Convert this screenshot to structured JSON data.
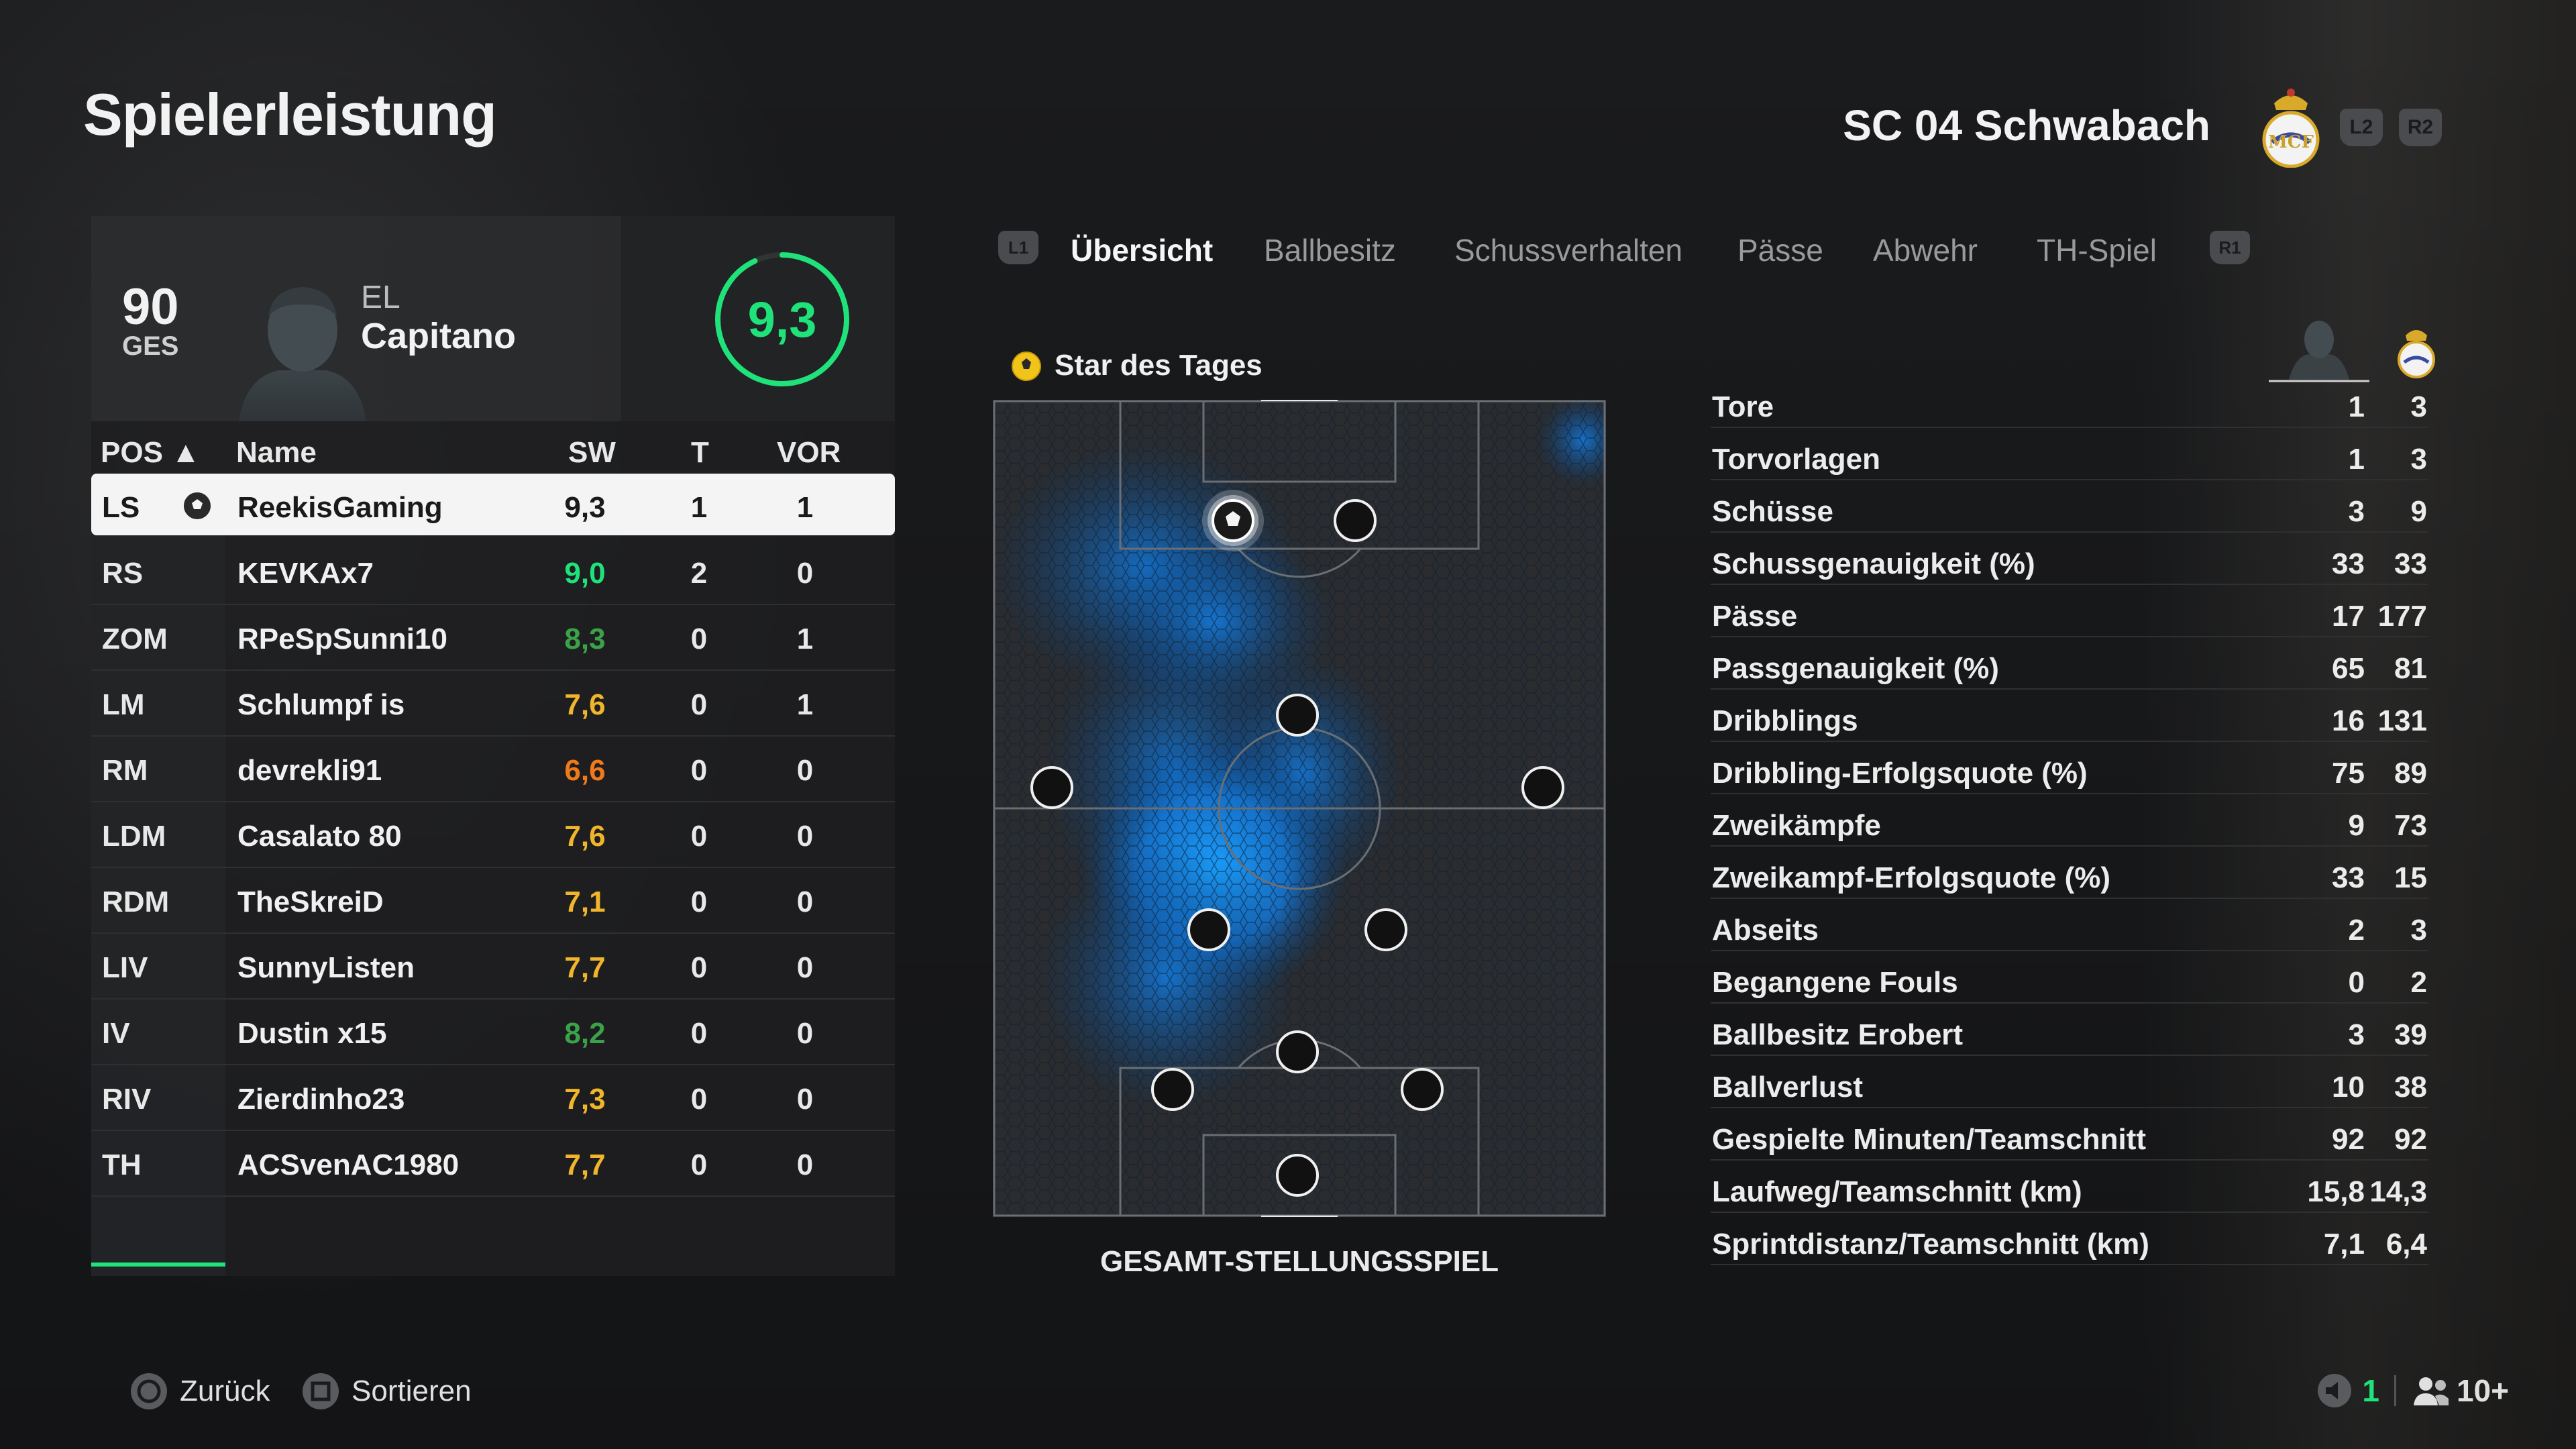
{
  "header": {
    "title": "Spielerleistung",
    "club_name": "SC 04 Schwabach",
    "button_l2": "L2",
    "button_r2": "R2"
  },
  "player_card": {
    "overall": "90",
    "overall_label": "GES",
    "first_name": "EL",
    "last_name": "Capitano",
    "rating": "9,3",
    "rating_color": "#1fe37a"
  },
  "table": {
    "headers": {
      "pos": "POS ▲",
      "name": "Name",
      "sw": "SW",
      "t": "T",
      "vor": "VOR"
    },
    "rows": [
      {
        "pos": "LS",
        "name": "ReekisGaming",
        "sw": "9,3",
        "t": "1",
        "vor": "1",
        "sw_color": "#1a1a1a"
      },
      {
        "pos": "RS",
        "name": "KEVKAx7",
        "sw": "9,0",
        "t": "2",
        "vor": "0",
        "sw_color": "#1fe37a"
      },
      {
        "pos": "ZOM",
        "name": "RPeSpSunni10",
        "sw": "8,3",
        "t": "0",
        "vor": "1",
        "sw_color": "#3aa34a"
      },
      {
        "pos": "LM",
        "name": "Schlumpf is",
        "sw": "7,6",
        "t": "0",
        "vor": "1",
        "sw_color": "#f0b52a"
      },
      {
        "pos": "RM",
        "name": "devrekli91",
        "sw": "6,6",
        "t": "0",
        "vor": "0",
        "sw_color": "#f07a1a"
      },
      {
        "pos": "LDM",
        "name": "Casalato 80",
        "sw": "7,6",
        "t": "0",
        "vor": "0",
        "sw_color": "#f0b52a"
      },
      {
        "pos": "RDM",
        "name": "TheSkreiD",
        "sw": "7,1",
        "t": "0",
        "vor": "0",
        "sw_color": "#f0b52a"
      },
      {
        "pos": "LIV",
        "name": "SunnyListen",
        "sw": "7,7",
        "t": "0",
        "vor": "0",
        "sw_color": "#f0b52a"
      },
      {
        "pos": "IV",
        "name": "Dustin x15",
        "sw": "8,2",
        "t": "0",
        "vor": "0",
        "sw_color": "#3aa34a"
      },
      {
        "pos": "RIV",
        "name": "Zierdinho23",
        "sw": "7,3",
        "t": "0",
        "vor": "0",
        "sw_color": "#f0b52a"
      },
      {
        "pos": "TH",
        "name": "ACSvenAC1980",
        "sw": "7,7",
        "t": "0",
        "vor": "0",
        "sw_color": "#f0b52a"
      }
    ]
  },
  "tabs": {
    "l1": "L1",
    "r1": "R1",
    "items": [
      "Übersicht",
      "Ballbesitz",
      "Schussverhalten",
      "Pässe",
      "Abwehr",
      "TH-Spiel"
    ]
  },
  "pitch": {
    "star_label": "Star des Tages",
    "caption": "GESAMT-STELLUNGSSPIEL"
  },
  "stats": [
    {
      "label": "Tore",
      "player": "1",
      "team": "3"
    },
    {
      "label": "Torvorlagen",
      "player": "1",
      "team": "3"
    },
    {
      "label": "Schüsse",
      "player": "3",
      "team": "9"
    },
    {
      "label": "Schussgenauigkeit (%)",
      "player": "33",
      "team": "33"
    },
    {
      "label": "Pässe",
      "player": "17",
      "team": "177"
    },
    {
      "label": "Passgenauigkeit (%)",
      "player": "65",
      "team": "81"
    },
    {
      "label": "Dribblings",
      "player": "16",
      "team": "131"
    },
    {
      "label": "Dribbling-Erfolgsquote (%)",
      "player": "75",
      "team": "89"
    },
    {
      "label": "Zweikämpfe",
      "player": "9",
      "team": "73"
    },
    {
      "label": "Zweikampf-Erfolgsquote (%)",
      "player": "33",
      "team": "15"
    },
    {
      "label": "Abseits",
      "player": "2",
      "team": "3"
    },
    {
      "label": "Begangene Fouls",
      "player": "0",
      "team": "2"
    },
    {
      "label": "Ballbesitz Erobert",
      "player": "3",
      "team": "39"
    },
    {
      "label": "Ballverlust",
      "player": "10",
      "team": "38"
    },
    {
      "label": "Gespielte Minuten/Teamschnitt",
      "player": "92",
      "team": "92"
    },
    {
      "label": "Laufweg/Teamschnitt (km)",
      "player": "15,8",
      "team": "14,3"
    },
    {
      "label": "Sprintdistanz/Teamschnitt (km)",
      "player": "7,1",
      "team": "6,4"
    }
  ],
  "footer": {
    "back_label": "Zurück",
    "sort_label": "Sortieren",
    "mic_count": "1",
    "players_count": "10+"
  }
}
